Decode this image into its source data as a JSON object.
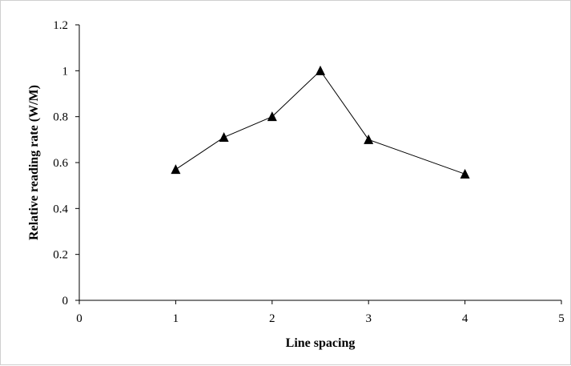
{
  "chart_data": {
    "type": "line",
    "xlabel": "Line spacing",
    "ylabel": "Relative reading rate (W/M)",
    "xlim": [
      0,
      5
    ],
    "ylim": [
      0,
      1.2
    ],
    "x_ticks": [
      "0",
      "1",
      "2",
      "3",
      "4",
      "5"
    ],
    "y_ticks": [
      "0",
      "0.2",
      "0.4",
      "0.6",
      "0.8",
      "1",
      "1.2"
    ],
    "grid": false,
    "marker": "triangle",
    "series": [
      {
        "x": [
          1,
          1.5,
          2,
          2.5,
          3,
          4
        ],
        "y": [
          0.57,
          0.71,
          0.8,
          1.0,
          0.7,
          0.55
        ]
      }
    ],
    "colors": {
      "line": "#000000",
      "marker": "#000000",
      "axis": "#000000"
    }
  }
}
